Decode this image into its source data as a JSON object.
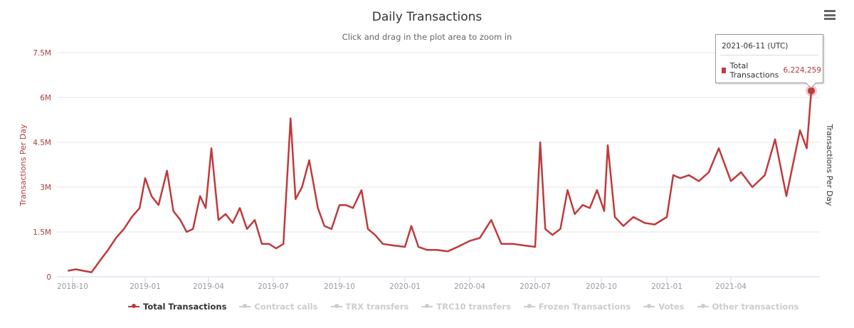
{
  "header": {
    "title": "Daily Transactions",
    "subtitle": "Click and drag in the plot area to zoom in",
    "menu_icon": "hamburger-menu-icon"
  },
  "colors": {
    "series": "#c0393b",
    "axis_label": "#b03a3a",
    "grid": "#e6e6e6",
    "legend_inactive": "#cccccc"
  },
  "tooltip": {
    "date": "2021-06-11 (UTC)",
    "series": "Total Transactions",
    "value": "6,224,259"
  },
  "legend": [
    {
      "label": "Total Transactions",
      "active": true
    },
    {
      "label": "Contract calls",
      "active": false
    },
    {
      "label": "TRX transfers",
      "active": false
    },
    {
      "label": "TRC10 transfers",
      "active": false
    },
    {
      "label": "Frozen Transactions",
      "active": false
    },
    {
      "label": "Votes",
      "active": false
    },
    {
      "label": "Other transactions",
      "active": false
    }
  ],
  "chart_data": {
    "type": "line",
    "title": "Daily Transactions",
    "subtitle": "Click and drag in the plot area to zoom in",
    "xlabel": "",
    "ylabel": "Transactions Per Day",
    "ylabel_right": "Transactions Per Day",
    "ylim": [
      0,
      7500000
    ],
    "yticks": [
      "0",
      "1.5M",
      "3M",
      "4.5M",
      "6M",
      "7.5M"
    ],
    "xticks": [
      "2018-10",
      "2019-01",
      "2019-04",
      "2019-07",
      "2019-10",
      "2020-01",
      "2020-04",
      "2020-07",
      "2020-10",
      "2021-01",
      "2021-04"
    ],
    "grid": true,
    "legend_position": "bottom",
    "series": [
      {
        "name": "Total Transactions",
        "x": [
          "2018-09-25",
          "2018-10-05",
          "2018-10-15",
          "2018-10-25",
          "2018-11-05",
          "2018-11-15",
          "2018-11-25",
          "2018-12-05",
          "2018-12-15",
          "2018-12-25",
          "2019-01-01",
          "2019-01-10",
          "2019-01-20",
          "2019-02-01",
          "2019-02-10",
          "2019-02-20",
          "2019-03-01",
          "2019-03-10",
          "2019-03-20",
          "2019-03-28",
          "2019-04-05",
          "2019-04-15",
          "2019-04-25",
          "2019-05-05",
          "2019-05-15",
          "2019-05-25",
          "2019-06-05",
          "2019-06-15",
          "2019-06-25",
          "2019-07-05",
          "2019-07-15",
          "2019-07-25",
          "2019-08-01",
          "2019-08-10",
          "2019-08-20",
          "2019-09-01",
          "2019-09-10",
          "2019-09-20",
          "2019-10-01",
          "2019-10-10",
          "2019-10-20",
          "2019-11-01",
          "2019-11-10",
          "2019-11-20",
          "2019-12-01",
          "2019-12-15",
          "2020-01-01",
          "2020-01-10",
          "2020-01-20",
          "2020-02-01",
          "2020-02-15",
          "2020-03-01",
          "2020-03-15",
          "2020-04-01",
          "2020-04-15",
          "2020-05-01",
          "2020-05-15",
          "2020-06-01",
          "2020-06-15",
          "2020-07-01",
          "2020-07-08",
          "2020-07-15",
          "2020-07-25",
          "2020-08-05",
          "2020-08-15",
          "2020-08-25",
          "2020-09-05",
          "2020-09-15",
          "2020-09-25",
          "2020-10-05",
          "2020-10-10",
          "2020-10-20",
          "2020-11-01",
          "2020-11-15",
          "2020-12-01",
          "2020-12-15",
          "2021-01-01",
          "2021-01-10",
          "2021-01-20",
          "2021-02-01",
          "2021-02-15",
          "2021-03-01",
          "2021-03-15",
          "2021-04-01",
          "2021-04-10",
          "2021-04-20",
          "2021-05-01",
          "2021-05-10",
          "2021-05-20",
          "2021-06-01",
          "2021-06-07",
          "2021-06-11"
        ],
        "values": [
          200000,
          250000,
          200000,
          150000,
          550000,
          900000,
          1300000,
          1600000,
          2000000,
          2300000,
          3300000,
          2700000,
          2400000,
          3550000,
          2200000,
          1900000,
          1500000,
          1600000,
          2700000,
          2300000,
          4300000,
          1900000,
          2100000,
          1800000,
          2300000,
          1600000,
          1900000,
          1100000,
          1100000,
          950000,
          1100000,
          5300000,
          2600000,
          3000000,
          3900000,
          2300000,
          1700000,
          1600000,
          2400000,
          2400000,
          2300000,
          2900000,
          1600000,
          1400000,
          1100000,
          1050000,
          1000000,
          1700000,
          1000000,
          900000,
          900000,
          850000,
          1000000,
          1200000,
          1300000,
          1900000,
          1100000,
          1100000,
          1050000,
          1000000,
          4500000,
          1600000,
          1400000,
          1600000,
          2900000,
          2100000,
          2400000,
          2300000,
          2900000,
          2200000,
          4400000,
          2000000,
          1700000,
          2000000,
          1800000,
          1750000,
          2000000,
          3400000,
          3300000,
          3400000,
          3200000,
          3500000,
          4300000,
          3200000,
          3500000,
          3000000,
          3400000,
          4600000,
          2700000,
          4900000,
          4300000,
          6224259
        ]
      }
    ],
    "highlighted_point": {
      "x": "2021-06-11",
      "y": 6224259
    }
  }
}
